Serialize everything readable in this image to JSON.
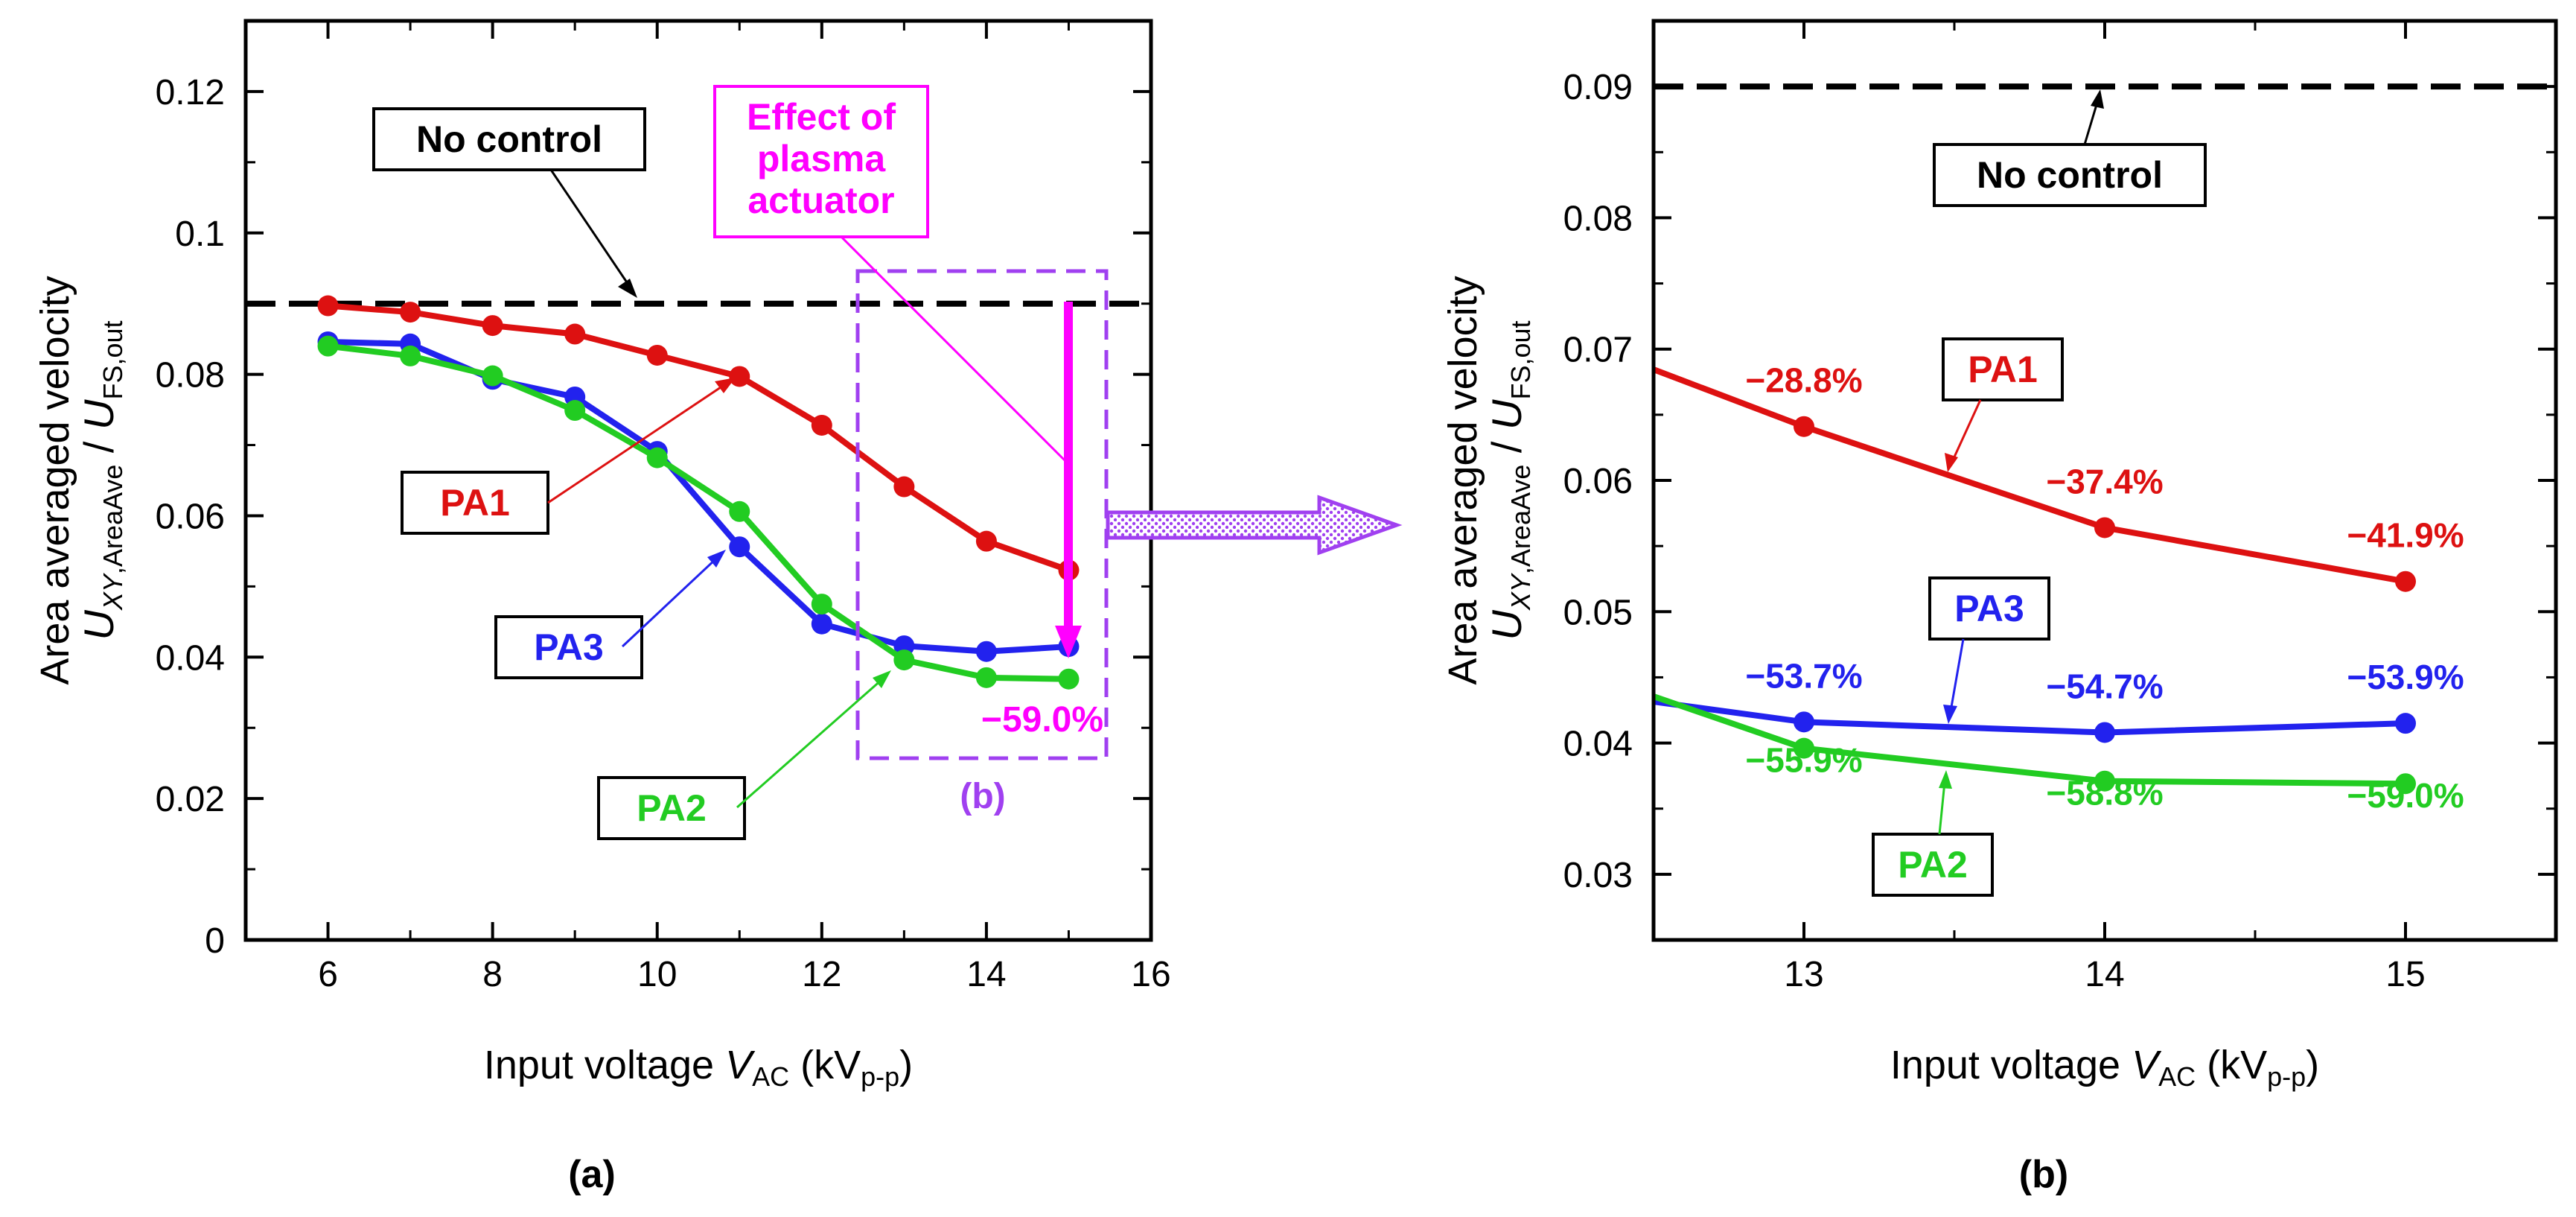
{
  "colors": {
    "PA1": "#dd1111",
    "PA2": "#22cc22",
    "PA3": "#2222ee",
    "nocontrol": "#000000",
    "effect": "#ff00ff",
    "zoom": "#a040f0"
  },
  "chart_data": [
    {
      "panel_label": "(a)",
      "type": "line",
      "ylabel": "Area averaged velocity",
      "ylabel_formula": {
        "U": "U",
        "xy_sub": "XY",
        "areaave_sub": ",AreaAve",
        "slash": " / ",
        "fs_sub": "FS,out"
      },
      "xlabel": {
        "prefix": "Input voltage ",
        "var": "V",
        "var_sub": "AC",
        "unit_pre": " (kV",
        "unit_sub": "p-p",
        "unit_post": ")"
      },
      "xlim": [
        5,
        16
      ],
      "ylim": [
        0,
        0.13
      ],
      "xticks": [
        6,
        8,
        10,
        12,
        14,
        16
      ],
      "yticks": [
        0,
        0.02,
        0.04,
        0.06,
        0.08,
        0.1,
        0.12
      ],
      "ytick_labels": [
        "0",
        "0.02",
        "0.04",
        "0.06",
        "0.08",
        "0.1",
        "0.12"
      ],
      "reference_line": {
        "label": "No control",
        "y": 0.09
      },
      "series": [
        {
          "name": "PA1",
          "x": [
            6,
            7,
            8,
            9,
            10,
            11,
            12,
            13,
            14,
            15
          ],
          "y": [
            0.0897,
            0.0888,
            0.0869,
            0.0857,
            0.0827,
            0.0797,
            0.0728,
            0.0641,
            0.0564,
            0.0523
          ]
        },
        {
          "name": "PA3",
          "x": [
            6,
            7,
            8,
            9,
            10,
            11,
            12,
            13,
            14,
            15
          ],
          "y": [
            0.0846,
            0.0843,
            0.0793,
            0.0768,
            0.0691,
            0.0556,
            0.0447,
            0.0416,
            0.0408,
            0.0415
          ]
        },
        {
          "name": "PA2",
          "x": [
            6,
            7,
            8,
            9,
            10,
            11,
            12,
            13,
            14,
            15
          ],
          "y": [
            0.084,
            0.0826,
            0.0798,
            0.0749,
            0.0682,
            0.0606,
            0.0475,
            0.0396,
            0.0371,
            0.0369
          ]
        }
      ],
      "annotations": {
        "effect_lines": [
          "Effect of",
          "plasma",
          "actuator"
        ],
        "effect_value": "−59.0%",
        "zoom_label": "(b)"
      }
    },
    {
      "panel_label": "(b)",
      "type": "line",
      "ylabel": "Area averaged velocity",
      "ylabel_formula": {
        "U": "U",
        "xy_sub": "XY",
        "areaave_sub": ",AreaAve",
        "slash": " / ",
        "fs_sub": "FS,out"
      },
      "xlabel": {
        "prefix": "Input voltage ",
        "var": "V",
        "var_sub": "AC",
        "unit_pre": " (kV",
        "unit_sub": "p-p",
        "unit_post": ")"
      },
      "xlim": [
        12.5,
        15.5
      ],
      "ylim": [
        0.025,
        0.095
      ],
      "xticks": [
        13,
        14,
        15
      ],
      "yticks": [
        0.03,
        0.04,
        0.05,
        0.06,
        0.07,
        0.08,
        0.09
      ],
      "ytick_labels": [
        "0.03",
        "0.04",
        "0.05",
        "0.06",
        "0.07",
        "0.08",
        "0.09"
      ],
      "reference_line": {
        "label": "No control",
        "y": 0.09
      },
      "series": [
        {
          "name": "PA1",
          "x": [
            12,
            13,
            14,
            15
          ],
          "y": [
            0.0728,
            0.0641,
            0.0564,
            0.0523
          ],
          "labels": [
            "−28.8%",
            "−37.4%",
            "−41.9%"
          ]
        },
        {
          "name": "PA3",
          "x": [
            12,
            13,
            14,
            15
          ],
          "y": [
            0.0447,
            0.0416,
            0.0408,
            0.0415
          ],
          "labels": [
            "−53.7%",
            "−54.7%",
            "−53.9%"
          ]
        },
        {
          "name": "PA2",
          "x": [
            12,
            13,
            14,
            15
          ],
          "y": [
            0.0475,
            0.0396,
            0.0371,
            0.0369
          ],
          "labels": [
            "−55.9%",
            "−58.8%",
            "−59.0%"
          ]
        }
      ]
    }
  ]
}
